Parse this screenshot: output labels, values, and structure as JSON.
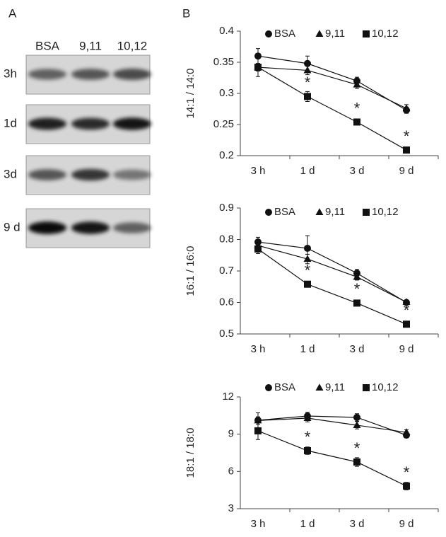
{
  "panel_labels": [
    "A",
    "B"
  ],
  "panel_a": {
    "columns": [
      "BSA",
      "9,11",
      "10,12"
    ],
    "rows": [
      "3h",
      "1d",
      "3d",
      "9 d"
    ]
  },
  "chart_data": [
    {
      "type": "line",
      "y_label": "14:1 / 14:0",
      "categories": [
        "3 h",
        "1 d",
        "3 d",
        "9 d"
      ],
      "ylim": [
        0.2,
        0.4
      ],
      "yticks": [
        0.2,
        0.25,
        0.3,
        0.35,
        0.4
      ],
      "series": [
        {
          "name": "BSA",
          "color": "#111111",
          "marker": "circle",
          "values": [
            0.36,
            0.348,
            0.32,
            0.273
          ],
          "errors": [
            0.012,
            0.012,
            0.006,
            0.005
          ]
        },
        {
          "name": "9,11",
          "color": "#111111",
          "marker": "triangle",
          "values": [
            0.342,
            0.337,
            0.314,
            0.276
          ],
          "errors": [
            0.006,
            0.007,
            0.006,
            0.006
          ]
        },
        {
          "name": "10,12",
          "color": "#111111",
          "marker": "square",
          "values": [
            0.342,
            0.295,
            0.254,
            0.209
          ],
          "errors": [
            0.015,
            0.008,
            0.004,
            0.003
          ],
          "marker_labels": [
            null,
            "*",
            "*",
            "*"
          ]
        }
      ]
    },
    {
      "type": "line",
      "y_label": "16:1 / 16:0",
      "categories": [
        "3 h",
        "1 d",
        "3 d",
        "9 d"
      ],
      "ylim": [
        0.5,
        0.9
      ],
      "yticks": [
        0.5,
        0.6,
        0.7,
        0.8,
        0.9
      ],
      "series": [
        {
          "name": "BSA",
          "color": "#111111",
          "marker": "circle",
          "values": [
            0.792,
            0.772,
            0.693,
            0.6
          ],
          "errors": [
            0.015,
            0.04,
            0.012,
            0.008
          ]
        },
        {
          "name": "9,11",
          "color": "#111111",
          "marker": "triangle",
          "values": [
            0.781,
            0.738,
            0.681,
            0.601
          ],
          "errors": [
            0.01,
            0.015,
            0.01,
            0.006
          ]
        },
        {
          "name": "10,12",
          "color": "#111111",
          "marker": "square",
          "values": [
            0.77,
            0.658,
            0.598,
            0.531
          ],
          "errors": [
            0.015,
            0.008,
            0.006,
            0.006
          ],
          "marker_labels": [
            null,
            "*",
            "*",
            "*"
          ]
        }
      ]
    },
    {
      "type": "line",
      "y_label": "18:1 / 18:0",
      "categories": [
        "3 h",
        "1 d",
        "3 d",
        "9 d"
      ],
      "ylim": [
        3,
        12
      ],
      "yticks": [
        3,
        6,
        9,
        12
      ],
      "series": [
        {
          "name": "BSA",
          "color": "#111111",
          "marker": "circle",
          "values": [
            10.12,
            10.46,
            10.35,
            8.92
          ],
          "errors": [
            0.6,
            0.3,
            0.3,
            0.2
          ]
        },
        {
          "name": "9,11",
          "color": "#111111",
          "marker": "triangle",
          "values": [
            10.1,
            10.29,
            9.72,
            9.15
          ],
          "errors": [
            0.3,
            0.3,
            0.3,
            0.2
          ]
        },
        {
          "name": "10,12",
          "color": "#111111",
          "marker": "square",
          "values": [
            9.27,
            7.67,
            6.76,
            4.82
          ],
          "errors": [
            0.7,
            0.3,
            0.35,
            0.3
          ],
          "marker_labels": [
            null,
            "*",
            "*",
            "*"
          ]
        }
      ]
    }
  ]
}
